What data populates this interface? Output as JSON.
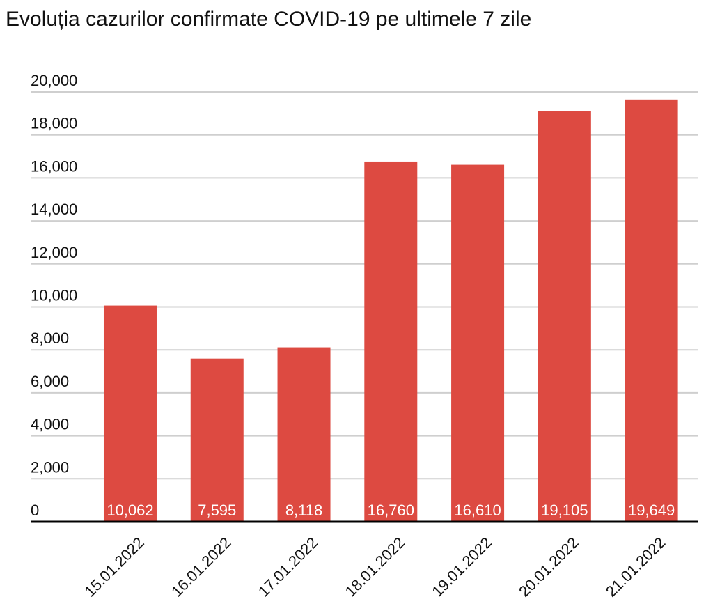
{
  "chart_data": {
    "type": "bar",
    "title": "Evoluția cazurilor confirmate COVID-19 pe ultimele 7 zile",
    "categories": [
      "15.01.2022",
      "16.01.2022",
      "17.01.2022",
      "18.01.2022",
      "19.01.2022",
      "20.01.2022",
      "21.01.2022"
    ],
    "values": [
      10062,
      7595,
      8118,
      16760,
      16610,
      19105,
      19649
    ],
    "value_labels": [
      "10,062",
      "7,595",
      "8,118",
      "16,760",
      "16,610",
      "19,105",
      "19,649"
    ],
    "color": "#dd4a41",
    "ylim": [
      0,
      20000
    ],
    "yticks": [
      0,
      {
        "value": 2000,
        "label": "2,000"
      },
      {
        "value": 4000,
        "label": "4,000"
      },
      {
        "value": 6000,
        "label": "6,000"
      },
      {
        "value": 8000,
        "label": "8,000"
      },
      {
        "value": 10000,
        "label": "10,000"
      },
      {
        "value": 12000,
        "label": "12,000"
      },
      {
        "value": 14000,
        "label": "14,000"
      },
      {
        "value": 16000,
        "label": "16,000"
      },
      {
        "value": 18000,
        "label": "18,000"
      },
      {
        "value": 20000,
        "label": "20,000"
      }
    ],
    "grid": true
  }
}
